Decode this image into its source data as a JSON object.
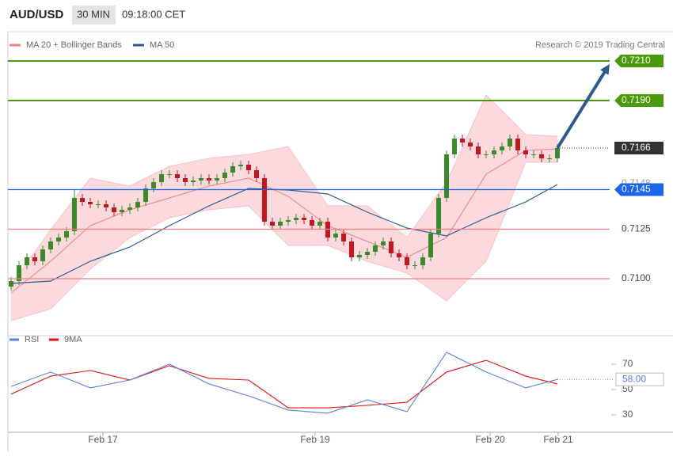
{
  "chart_data": {
    "type": "candlestick",
    "symbol": "AUD/USD",
    "timeframe": "30 MIN",
    "time": "09:18:00 CET",
    "copyright": "Research © 2019 Trading Central",
    "ylim": [
      0.70728,
      0.72148
    ],
    "xlim": [
      -0.4,
      69.6
    ],
    "xticks": [
      {
        "value": 11.6,
        "label": "Feb 17"
      },
      {
        "value": 38.4,
        "label": "Feb 19"
      },
      {
        "value": 60.5,
        "label": "Feb 20"
      },
      {
        "value": 69.1,
        "label": "Feb 21"
      }
    ],
    "up_color": "#3a8a2a",
    "down_color": "#c0181f",
    "candles": [
      [
        0.7096,
        0.71008,
        0.7094,
        0.70988
      ],
      [
        0.70988,
        0.71088,
        0.70968,
        0.71068
      ],
      [
        0.71068,
        0.71128,
        0.71048,
        0.71108
      ],
      [
        0.71108,
        0.71128,
        0.71068,
        0.71088
      ],
      [
        0.71088,
        0.71168,
        0.71068,
        0.71148
      ],
      [
        0.71148,
        0.71208,
        0.71128,
        0.71188
      ],
      [
        0.71188,
        0.71228,
        0.71168,
        0.71208
      ],
      [
        0.71208,
        0.7126,
        0.71188,
        0.7124
      ],
      [
        0.7124,
        0.71448,
        0.7122,
        0.71408
      ],
      [
        0.71408,
        0.71428,
        0.71368,
        0.71388
      ],
      [
        0.71388,
        0.71408,
        0.71356,
        0.71376
      ],
      [
        0.71376,
        0.71396,
        0.71356,
        0.71376
      ],
      [
        0.71376,
        0.71396,
        0.7134,
        0.7136
      ],
      [
        0.7136,
        0.7138,
        0.71316,
        0.71336
      ],
      [
        0.71336,
        0.71368,
        0.71316,
        0.71348
      ],
      [
        0.71348,
        0.7138,
        0.71328,
        0.7136
      ],
      [
        0.7136,
        0.71408,
        0.7134,
        0.71388
      ],
      [
        0.71388,
        0.71476,
        0.71368,
        0.71456
      ],
      [
        0.71456,
        0.71508,
        0.71436,
        0.71488
      ],
      [
        0.71488,
        0.71548,
        0.71468,
        0.71528
      ],
      [
        0.71528,
        0.71548,
        0.71508,
        0.71528
      ],
      [
        0.71528,
        0.71548,
        0.71488,
        0.71508
      ],
      [
        0.71508,
        0.71528,
        0.71468,
        0.71488
      ],
      [
        0.71488,
        0.71516,
        0.71468,
        0.71496
      ],
      [
        0.71496,
        0.71528,
        0.71476,
        0.71508
      ],
      [
        0.71508,
        0.71528,
        0.71476,
        0.71496
      ],
      [
        0.71496,
        0.71528,
        0.71476,
        0.71508
      ],
      [
        0.71508,
        0.71556,
        0.71488,
        0.71536
      ],
      [
        0.71536,
        0.71588,
        0.71516,
        0.71568
      ],
      [
        0.71568,
        0.71596,
        0.71548,
        0.71576
      ],
      [
        0.71576,
        0.71596,
        0.71528,
        0.71548
      ],
      [
        0.71548,
        0.71568,
        0.71488,
        0.71508
      ],
      [
        0.71508,
        0.71528,
        0.71268,
        0.71288
      ],
      [
        0.71288,
        0.71308,
        0.71248,
        0.71268
      ],
      [
        0.71268,
        0.71308,
        0.71248,
        0.71288
      ],
      [
        0.71288,
        0.71316,
        0.71268,
        0.71296
      ],
      [
        0.71296,
        0.71328,
        0.71276,
        0.71308
      ],
      [
        0.71308,
        0.71328,
        0.71276,
        0.71296
      ],
      [
        0.71296,
        0.71316,
        0.71248,
        0.71268
      ],
      [
        0.71268,
        0.71308,
        0.71248,
        0.71288
      ],
      [
        0.71288,
        0.71308,
        0.71188,
        0.71208
      ],
      [
        0.71208,
        0.71248,
        0.71188,
        0.71228
      ],
      [
        0.71228,
        0.71248,
        0.71168,
        0.71188
      ],
      [
        0.71188,
        0.71208,
        0.71088,
        0.71108
      ],
      [
        0.71108,
        0.7114,
        0.71088,
        0.7112
      ],
      [
        0.7112,
        0.71156,
        0.711,
        0.71136
      ],
      [
        0.71136,
        0.71188,
        0.71116,
        0.71168
      ],
      [
        0.71168,
        0.71208,
        0.71148,
        0.71188
      ],
      [
        0.71188,
        0.71208,
        0.71108,
        0.71128
      ],
      [
        0.71128,
        0.71148,
        0.71088,
        0.71108
      ],
      [
        0.71108,
        0.71128,
        0.71048,
        0.71068
      ],
      [
        0.71068,
        0.71088,
        0.71048,
        0.71068
      ],
      [
        0.71068,
        0.71128,
        0.71048,
        0.71108
      ],
      [
        0.71108,
        0.71248,
        0.71088,
        0.71228
      ],
      [
        0.71228,
        0.71428,
        0.71208,
        0.71408
      ],
      [
        0.71408,
        0.71648,
        0.71388,
        0.71628
      ],
      [
        0.71628,
        0.71728,
        0.71608,
        0.71708
      ],
      [
        0.71708,
        0.71728,
        0.71668,
        0.71688
      ],
      [
        0.71688,
        0.71708,
        0.71648,
        0.71668
      ],
      [
        0.71668,
        0.71688,
        0.71608,
        0.71628
      ],
      [
        0.71628,
        0.71648,
        0.71608,
        0.71628
      ],
      [
        0.71628,
        0.71668,
        0.71608,
        0.71648
      ],
      [
        0.71648,
        0.71688,
        0.71628,
        0.71668
      ],
      [
        0.71668,
        0.71728,
        0.71648,
        0.71708
      ],
      [
        0.71708,
        0.71728,
        0.71628,
        0.71648
      ],
      [
        0.71648,
        0.71668,
        0.71608,
        0.71628
      ],
      [
        0.71628,
        0.71648,
        0.71608,
        0.71628
      ],
      [
        0.71628,
        0.71648,
        0.71588,
        0.71608
      ],
      [
        0.71608,
        0.71628,
        0.71588,
        0.71608
      ],
      [
        0.71608,
        0.7168,
        0.71588,
        0.7166
      ]
    ],
    "overlays": {
      "x": [
        0,
        5,
        10,
        15,
        20,
        25,
        30,
        35,
        40,
        45,
        50,
        55,
        60,
        65,
        69
      ],
      "band_color": "#fbd9dc",
      "ma20": {
        "name": "MA 20 + Bollinger Bands",
        "color": "#f08080",
        "values": [
          0.70928,
          0.71088,
          0.71268,
          0.71348,
          0.71408,
          0.71468,
          0.71508,
          0.71416,
          0.71268,
          0.71188,
          0.71108,
          0.71208,
          0.71528,
          0.71648,
          0.71656
        ]
      },
      "bb_upper": [
        0.70968,
        0.71248,
        0.71508,
        0.71468,
        0.71568,
        0.71608,
        0.71628,
        0.71668,
        0.71368,
        0.71368,
        0.71208,
        0.71488,
        0.71928,
        0.71728,
        0.7172
      ],
      "bb_lower": [
        0.70788,
        0.70848,
        0.71048,
        0.71208,
        0.71308,
        0.71348,
        0.71368,
        0.71168,
        0.71168,
        0.71088,
        0.71028,
        0.70888,
        0.71088,
        0.71588,
        0.71588
      ],
      "ma50": {
        "name": "MA 50",
        "color": "#2c5a8f",
        "values": [
          0.70976,
          0.70988,
          0.71088,
          0.7116,
          0.71268,
          0.71368,
          0.71456,
          0.71448,
          0.71428,
          0.71336,
          0.71256,
          0.71216,
          0.71308,
          0.71388,
          0.71476
        ]
      }
    },
    "levels": [
      {
        "value": 0.721,
        "label": "0.7210",
        "color": "#4a9a0c",
        "style": "box"
      },
      {
        "value": 0.719,
        "label": "0.7190",
        "color": "#4a9a0c",
        "style": "box"
      },
      {
        "value": 0.7166,
        "label": "0.7166",
        "color": "#333333",
        "style": "last"
      },
      {
        "value": 0.7148,
        "label": "0.7148",
        "color": "#999999",
        "style": "text"
      },
      {
        "value": 0.7145,
        "label": "0.7145",
        "color": "#1a66e8",
        "style": "box"
      },
      {
        "value": 0.7125,
        "label": "0.7125",
        "color": "#f08080",
        "style": "text"
      },
      {
        "value": 0.71,
        "label": "0.7100",
        "color": "#f08080",
        "style": "text"
      }
    ],
    "arrow": {
      "color": "#2c5a8f",
      "from": [
        69,
        0.7166
      ],
      "to": [
        75.6,
        0.72085
      ]
    },
    "rsi": {
      "ylim": [
        20,
        87.5
      ],
      "yticks": [
        70,
        50,
        30
      ],
      "x": [
        0,
        5,
        10,
        15,
        20,
        25,
        30,
        35,
        40,
        45,
        50,
        55,
        60,
        65,
        69
      ],
      "series": [
        {
          "name": "RSI",
          "color": "#5b7fe0",
          "values": [
            52.5,
            63.8,
            51.3,
            57.5,
            70,
            54.4,
            45,
            33.8,
            31.3,
            41.9,
            32.5,
            79.4,
            63.8,
            51.3,
            58
          ]
        },
        {
          "name": "9MA",
          "color": "#e01010",
          "values": [
            46.3,
            60.6,
            65,
            57.5,
            68.8,
            58.8,
            57.5,
            35.6,
            35.6,
            37.5,
            40,
            63.8,
            73.1,
            60.6,
            54.4
          ]
        }
      ],
      "last": {
        "value": 58,
        "label": "58.00"
      }
    }
  }
}
